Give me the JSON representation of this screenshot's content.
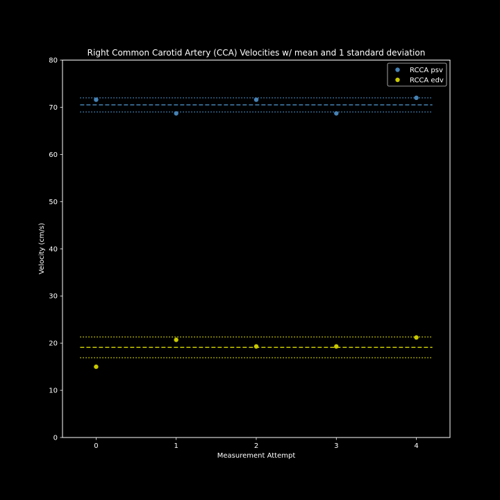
{
  "chart_data": {
    "type": "scatter",
    "title": "Right Common Carotid Artery (CCA) Velocities w/ mean and 1 standard deviation",
    "xlabel": "Measurement Attempt",
    "ylabel": "Velocity (cm/s)",
    "xlim": [
      -0.42,
      4.42
    ],
    "ylim": [
      0,
      80
    ],
    "xticks": [
      0,
      1,
      2,
      3,
      4
    ],
    "yticks": [
      0,
      10,
      20,
      30,
      40,
      50,
      60,
      70,
      80
    ],
    "grid": false,
    "legend_position": "top-right",
    "reference_line_x_extent": [
      -0.2,
      4.2
    ],
    "series": [
      {
        "name": "RCCA psv",
        "color": "#4682b4",
        "x": [
          0,
          1,
          2,
          3,
          4
        ],
        "values": [
          71.6,
          68.7,
          71.6,
          68.7,
          72.0
        ],
        "mean": 70.5,
        "std": 1.5
      },
      {
        "name": "RCCA edv",
        "color": "#c8c800",
        "x": [
          0,
          1,
          2,
          3,
          4
        ],
        "values": [
          15.0,
          20.7,
          19.3,
          19.3,
          21.2
        ],
        "mean": 19.1,
        "std": 2.2
      }
    ]
  }
}
